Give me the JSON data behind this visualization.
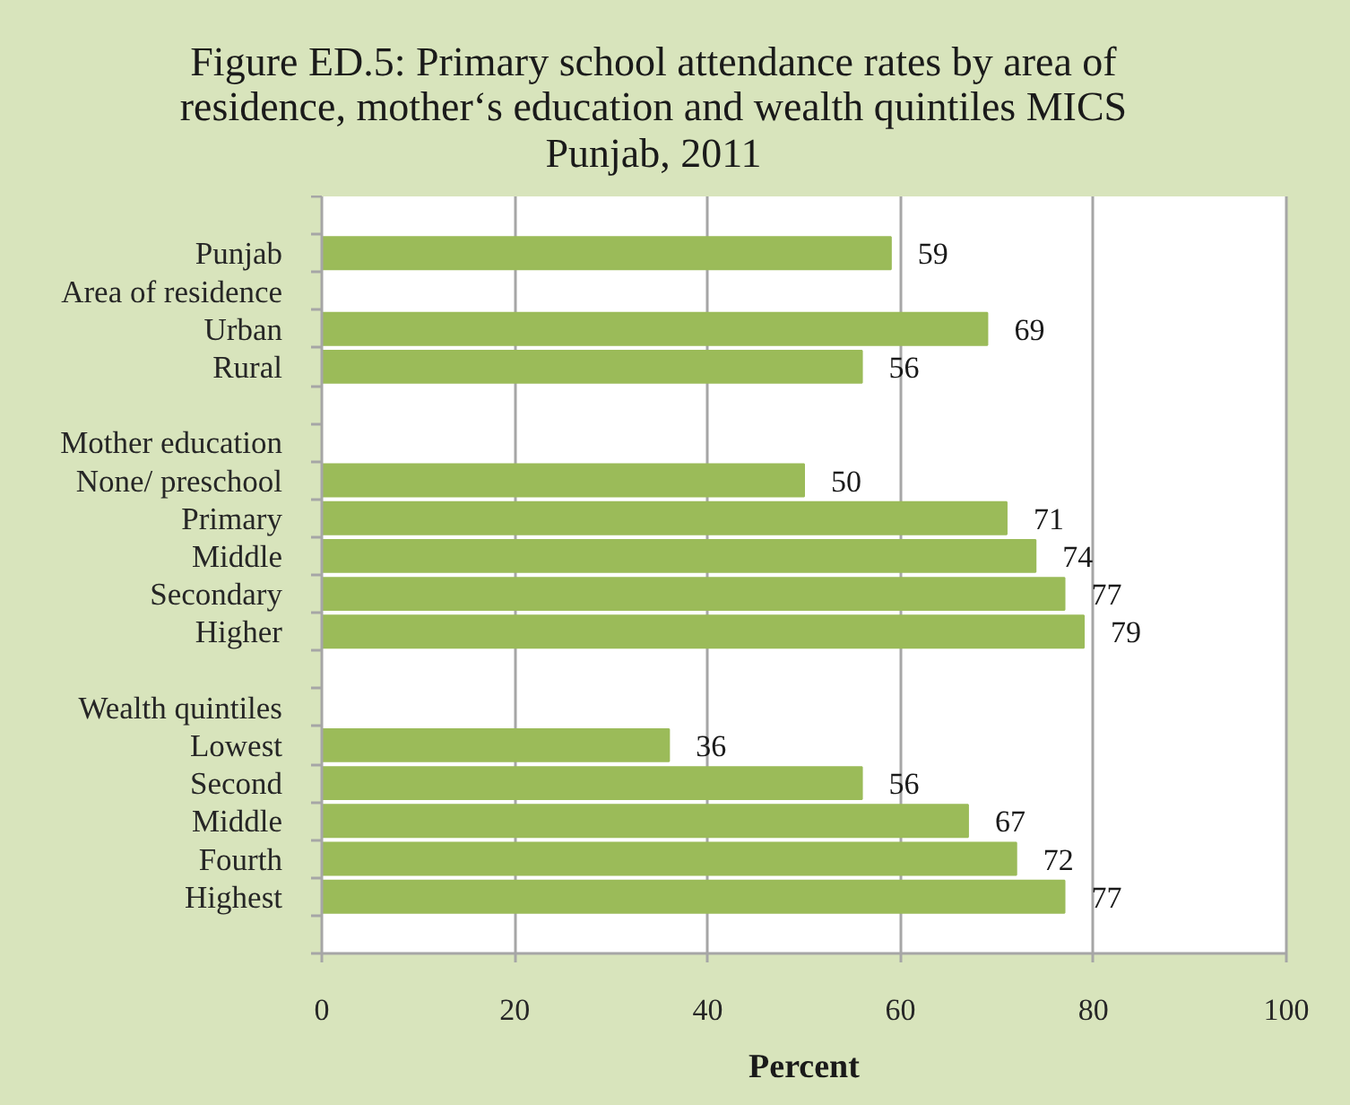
{
  "chart_data": {
    "type": "bar",
    "orientation": "horizontal",
    "title": "Figure ED.5: Primary school attendance rates by area of residence, mother‘s education and wealth quintiles MICS Punjab, 2011",
    "xlabel": "Percent",
    "categories": [
      null,
      "Punjab",
      "Area of residence",
      "Urban",
      "Rural",
      null,
      "Mother education",
      "None/ preschool",
      "Primary",
      "Middle",
      "Secondary",
      "Higher",
      null,
      "Wealth quintiles",
      "Lowest",
      "Second",
      "Middle",
      "Fourth",
      "Highest",
      null
    ],
    "values": [
      null,
      59,
      null,
      69,
      56,
      null,
      null,
      50,
      71,
      74,
      77,
      79,
      null,
      null,
      36,
      56,
      67,
      72,
      77,
      null
    ],
    "color": "#9bbb59",
    "xlim": [
      0,
      100
    ],
    "xticks": [
      0,
      20,
      40,
      60,
      80,
      100
    ],
    "grid": "x",
    "data_labels": true
  }
}
